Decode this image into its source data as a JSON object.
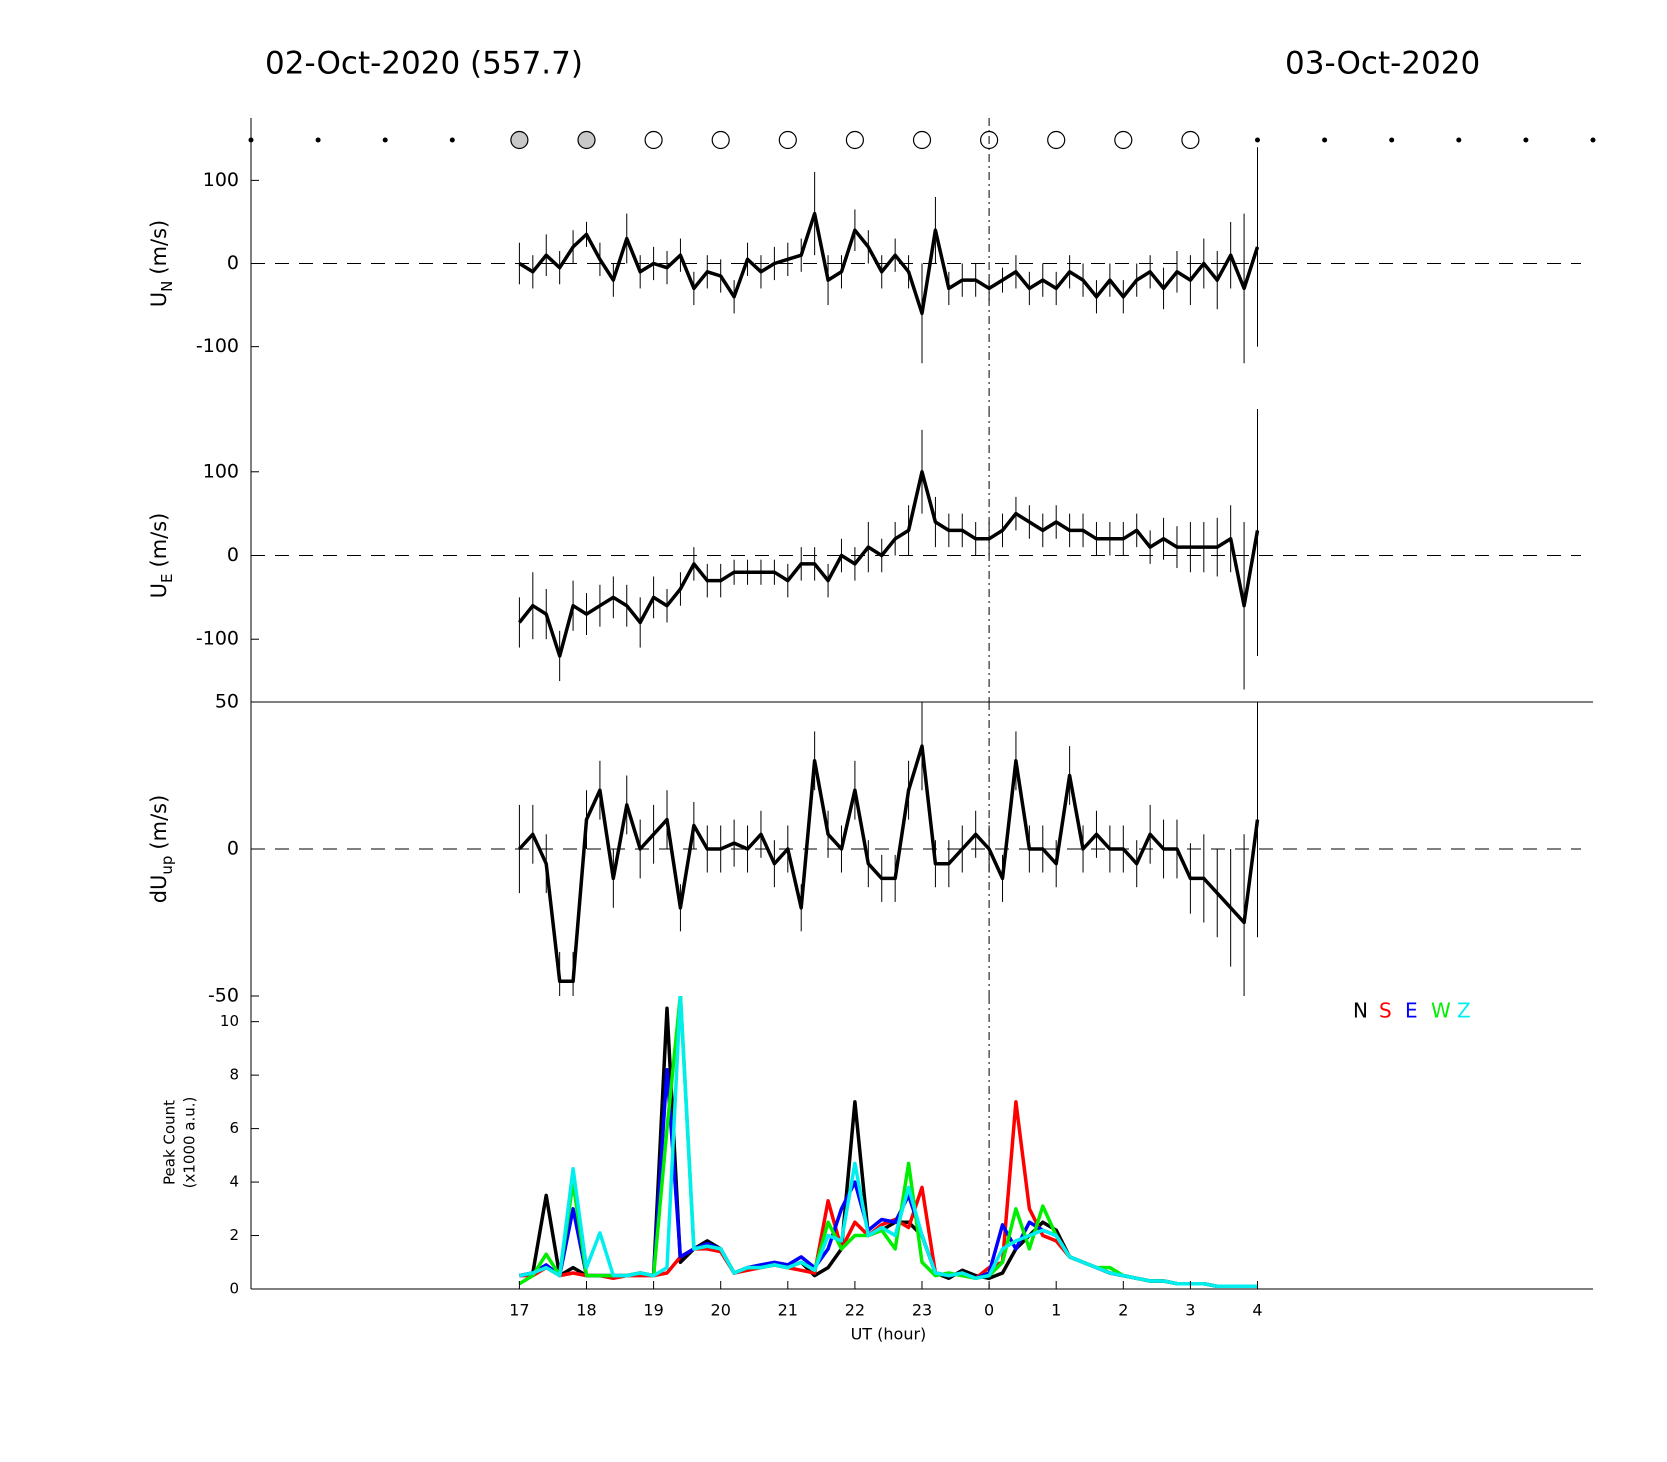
{
  "header": {
    "left_title": "02-Oct-2020 (557.7)",
    "right_title": "03-Oct-2020"
  },
  "chart_data": [
    {
      "type": "line",
      "ylabel": "U",
      "ylabel_sub": "N",
      "ylabel_unit": "(m/s)",
      "color": "#000000",
      "xlim": [
        13,
        33
      ],
      "ylim": [
        -175,
        175
      ],
      "yticks": [
        -100,
        0,
        100
      ],
      "vline": 24,
      "x": [
        17,
        17.2,
        17.4,
        17.6,
        17.8,
        18,
        18.2,
        18.4,
        18.6,
        18.8,
        19,
        19.2,
        19.4,
        19.6,
        19.8,
        20,
        20.2,
        20.4,
        20.6,
        20.8,
        21,
        21.2,
        21.4,
        21.6,
        21.8,
        22,
        22.2,
        22.4,
        22.6,
        22.8,
        23,
        23.2,
        23.4,
        23.6,
        23.8,
        24,
        24.2,
        24.4,
        24.6,
        24.8,
        25,
        25.2,
        25.4,
        25.6,
        25.8,
        26,
        26.2,
        26.4,
        26.6,
        26.8,
        27,
        27.2,
        27.4,
        27.6,
        27.8,
        28
      ],
      "values": [
        0,
        -10,
        10,
        -5,
        20,
        35,
        5,
        -20,
        30,
        -10,
        0,
        -5,
        10,
        -30,
        -10,
        -15,
        -40,
        5,
        -10,
        0,
        5,
        10,
        60,
        -20,
        -10,
        40,
        20,
        -10,
        10,
        -10,
        -60,
        40,
        -30,
        -20,
        -20,
        -30,
        -20,
        -10,
        -30,
        -20,
        -30,
        -10,
        -20,
        -40,
        -20,
        -40,
        -20,
        -10,
        -30,
        -10,
        -20,
        0,
        -20,
        10,
        -30,
        20
      ],
      "errors": [
        25,
        20,
        25,
        20,
        20,
        15,
        20,
        20,
        30,
        20,
        20,
        20,
        20,
        20,
        20,
        20,
        20,
        20,
        20,
        20,
        20,
        20,
        50,
        30,
        20,
        25,
        20,
        20,
        20,
        20,
        60,
        40,
        20,
        20,
        20,
        15,
        15,
        20,
        20,
        20,
        20,
        20,
        20,
        20,
        20,
        20,
        20,
        20,
        25,
        25,
        30,
        30,
        35,
        40,
        90,
        120
      ]
    },
    {
      "type": "line",
      "ylabel": "U",
      "ylabel_sub": "E",
      "ylabel_unit": "(m/s)",
      "color": "#000000",
      "xlim": [
        13,
        33
      ],
      "ylim": [
        -175,
        175
      ],
      "yticks": [
        -100,
        0,
        100
      ],
      "vline": 24,
      "x": [
        17,
        17.2,
        17.4,
        17.6,
        17.8,
        18,
        18.2,
        18.4,
        18.6,
        18.8,
        19,
        19.2,
        19.4,
        19.6,
        19.8,
        20,
        20.2,
        20.4,
        20.6,
        20.8,
        21,
        21.2,
        21.4,
        21.6,
        21.8,
        22,
        22.2,
        22.4,
        22.6,
        22.8,
        23,
        23.2,
        23.4,
        23.6,
        23.8,
        24,
        24.2,
        24.4,
        24.6,
        24.8,
        25,
        25.2,
        25.4,
        25.6,
        25.8,
        26,
        26.2,
        26.4,
        26.6,
        26.8,
        27,
        27.2,
        27.4,
        27.6,
        27.8,
        28
      ],
      "values": [
        -80,
        -60,
        -70,
        -120,
        -60,
        -70,
        -60,
        -50,
        -60,
        -80,
        -50,
        -60,
        -40,
        -10,
        -30,
        -30,
        -20,
        -20,
        -20,
        -20,
        -30,
        -10,
        -10,
        -30,
        0,
        -10,
        10,
        0,
        20,
        30,
        100,
        40,
        30,
        30,
        20,
        20,
        30,
        50,
        40,
        30,
        40,
        30,
        30,
        20,
        20,
        20,
        30,
        10,
        20,
        10,
        10,
        10,
        10,
        20,
        -60,
        30
      ],
      "errors": [
        30,
        40,
        30,
        30,
        30,
        25,
        25,
        25,
        25,
        30,
        25,
        20,
        20,
        20,
        20,
        20,
        15,
        15,
        15,
        15,
        20,
        20,
        20,
        20,
        20,
        20,
        30,
        20,
        20,
        30,
        50,
        30,
        20,
        20,
        20,
        20,
        20,
        20,
        20,
        20,
        20,
        20,
        20,
        20,
        20,
        20,
        20,
        20,
        25,
        25,
        30,
        30,
        35,
        40,
        100,
        150
      ]
    },
    {
      "type": "line",
      "ylabel": "dU",
      "ylabel_sub": "up",
      "ylabel_unit": "(m/s)",
      "color": "#000000",
      "xlim": [
        13,
        33
      ],
      "ylim": [
        -50,
        50
      ],
      "yticks": [
        -50,
        0,
        50
      ],
      "vline": 24,
      "x": [
        17,
        17.2,
        17.4,
        17.6,
        17.8,
        18,
        18.2,
        18.4,
        18.6,
        18.8,
        19,
        19.2,
        19.4,
        19.6,
        19.8,
        20,
        20.2,
        20.4,
        20.6,
        20.8,
        21,
        21.2,
        21.4,
        21.6,
        21.8,
        22,
        22.2,
        22.4,
        22.6,
        22.8,
        23,
        23.2,
        23.4,
        23.6,
        23.8,
        24,
        24.2,
        24.4,
        24.6,
        24.8,
        25,
        25.2,
        25.4,
        25.6,
        25.8,
        26,
        26.2,
        26.4,
        26.6,
        26.8,
        27,
        27.2,
        27.4,
        27.6,
        27.8,
        28
      ],
      "values": [
        0,
        5,
        -5,
        -45,
        -45,
        10,
        20,
        -10,
        15,
        0,
        5,
        10,
        -20,
        8,
        0,
        0,
        2,
        0,
        5,
        -5,
        0,
        -20,
        30,
        5,
        0,
        20,
        -5,
        -10,
        -10,
        20,
        35,
        -5,
        -5,
        0,
        5,
        0,
        -10,
        30,
        0,
        0,
        -5,
        25,
        0,
        5,
        0,
        0,
        -5,
        5,
        0,
        0,
        -10,
        -10,
        -15,
        -20,
        -25,
        10
      ],
      "errors": [
        15,
        10,
        10,
        10,
        10,
        10,
        10,
        10,
        10,
        10,
        10,
        10,
        8,
        8,
        8,
        8,
        8,
        8,
        8,
        8,
        8,
        8,
        10,
        8,
        8,
        10,
        8,
        8,
        8,
        10,
        15,
        8,
        8,
        8,
        8,
        8,
        8,
        10,
        8,
        8,
        8,
        10,
        8,
        8,
        8,
        8,
        8,
        10,
        10,
        10,
        12,
        15,
        15,
        20,
        30,
        40
      ]
    },
    {
      "type": "line",
      "ylabel": [
        "Peak Count",
        "(x1000 a.u.)"
      ],
      "xlabel": "UT (hour)",
      "xlim": [
        13,
        33
      ],
      "ylim": [
        0,
        10.96
      ],
      "yticks": [
        0,
        2,
        4,
        6,
        8,
        10
      ],
      "vline": 24,
      "legend": "upper right",
      "xticks": [
        17,
        18,
        19,
        20,
        21,
        22,
        23,
        {
          "value": 24,
          "label": "0"
        },
        {
          "value": 25,
          "label": "1"
        },
        {
          "value": 26,
          "label": "2"
        },
        {
          "value": 27,
          "label": "3"
        },
        {
          "value": 28,
          "label": "4"
        }
      ],
      "x": [
        17,
        17.2,
        17.4,
        17.6,
        17.8,
        18,
        18.2,
        18.4,
        18.6,
        18.8,
        19,
        19.2,
        19.4,
        19.6,
        19.8,
        20,
        20.2,
        20.4,
        20.6,
        20.8,
        21,
        21.2,
        21.4,
        21.6,
        21.8,
        22,
        22.2,
        22.4,
        22.6,
        22.8,
        23,
        23.2,
        23.4,
        23.6,
        23.8,
        24,
        24.2,
        24.4,
        24.6,
        24.8,
        25,
        25.2,
        25.4,
        25.6,
        25.8,
        26,
        26.2,
        26.4,
        26.6,
        26.8,
        27,
        27.2,
        27.4,
        27.6,
        27.8,
        28
      ],
      "series": [
        {
          "name": "N",
          "color": "#000000",
          "values": [
            0.5,
            0.6,
            3.5,
            0.5,
            0.8,
            0.5,
            0.5,
            0.5,
            0.5,
            0.6,
            0.5,
            10.5,
            1.0,
            1.5,
            1.8,
            1.5,
            0.6,
            0.8,
            0.8,
            0.9,
            0.8,
            1.0,
            0.5,
            0.8,
            1.5,
            7.0,
            2.0,
            2.2,
            2.5,
            2.5,
            2.0,
            0.6,
            0.4,
            0.7,
            0.5,
            0.4,
            0.6,
            1.5,
            2.0,
            2.5,
            2.2,
            1.2,
            1.0,
            0.8,
            0.6,
            0.5,
            0.4,
            0.3,
            0.3,
            0.2,
            0.2,
            0.2,
            0.1,
            0.1,
            0.1,
            0.1
          ]
        },
        {
          "name": "S",
          "color": "#ff0000",
          "values": [
            0.5,
            0.5,
            0.8,
            0.5,
            0.6,
            0.5,
            0.5,
            0.4,
            0.5,
            0.5,
            0.5,
            0.6,
            1.2,
            1.5,
            1.5,
            1.4,
            0.6,
            0.7,
            0.8,
            0.9,
            0.8,
            0.7,
            0.6,
            3.3,
            1.5,
            2.5,
            2.0,
            2.4,
            2.6,
            2.3,
            3.8,
            0.6,
            0.5,
            0.6,
            0.4,
            0.8,
            1.0,
            7.0,
            3.0,
            2.0,
            1.8,
            1.2,
            1.0,
            0.8,
            0.6,
            0.5,
            0.4,
            0.3,
            0.3,
            0.2,
            0.2,
            0.2,
            0.1,
            0.1,
            0.1,
            0.1
          ]
        },
        {
          "name": "E",
          "color": "#0000ff",
          "values": [
            0.5,
            0.6,
            0.9,
            0.5,
            3.0,
            0.5,
            0.5,
            0.5,
            0.5,
            0.6,
            0.5,
            8.2,
            1.2,
            1.5,
            1.7,
            1.5,
            0.6,
            0.8,
            0.9,
            1.0,
            0.9,
            1.2,
            0.8,
            1.5,
            3.0,
            4.0,
            2.2,
            2.6,
            2.5,
            3.5,
            2.0,
            0.6,
            0.5,
            0.6,
            0.4,
            0.6,
            2.4,
            1.5,
            2.5,
            2.2,
            2.0,
            1.2,
            1.0,
            0.8,
            0.6,
            0.5,
            0.4,
            0.3,
            0.3,
            0.2,
            0.2,
            0.2,
            0.1,
            0.1,
            0.1,
            0.1
          ]
        },
        {
          "name": "W",
          "color": "#00ee00",
          "values": [
            0.2,
            0.5,
            1.3,
            0.5,
            4.0,
            0.5,
            0.5,
            0.5,
            0.5,
            0.6,
            0.5,
            6.0,
            11,
            1.5,
            1.6,
            1.5,
            0.6,
            0.8,
            0.8,
            0.9,
            0.8,
            1.0,
            0.7,
            2.5,
            1.5,
            2.0,
            2.0,
            2.2,
            1.5,
            4.7,
            1.0,
            0.5,
            0.6,
            0.5,
            0.4,
            0.5,
            1.0,
            3.0,
            1.5,
            3.1,
            2.0,
            1.2,
            1.0,
            0.8,
            0.8,
            0.5,
            0.4,
            0.3,
            0.3,
            0.2,
            0.2,
            0.2,
            0.1,
            0.1,
            0.1,
            0.1
          ]
        },
        {
          "name": "Z",
          "color": "#00eeee",
          "values": [
            0.5,
            0.6,
            0.8,
            0.5,
            4.5,
            0.8,
            2.1,
            0.5,
            0.5,
            0.6,
            0.5,
            0.8,
            11,
            1.5,
            1.6,
            1.5,
            0.6,
            0.8,
            0.8,
            0.9,
            0.8,
            1.0,
            0.7,
            2.0,
            1.8,
            4.7,
            2.0,
            2.3,
            2.0,
            3.8,
            2.0,
            0.6,
            0.5,
            0.6,
            0.4,
            0.5,
            1.5,
            1.8,
            2.0,
            2.2,
            2.0,
            1.2,
            1.0,
            0.8,
            0.6,
            0.5,
            0.4,
            0.3,
            0.3,
            0.2,
            0.2,
            0.2,
            0.1,
            0.1,
            0.1,
            0.1
          ]
        }
      ]
    }
  ]
}
